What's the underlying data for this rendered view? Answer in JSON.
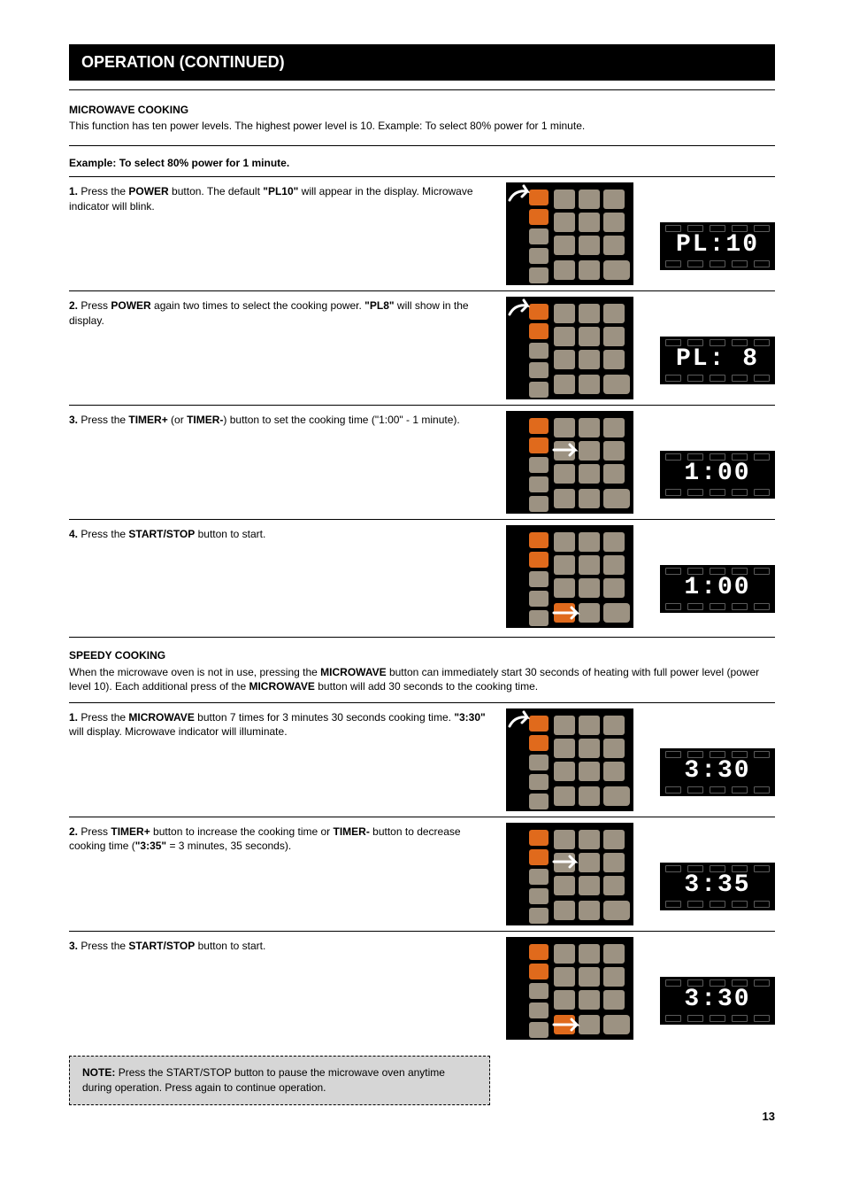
{
  "colors": {
    "orange": "#e06a1c",
    "tan": "#9c9282",
    "panel": "#000000",
    "arrow": "#ffffff",
    "lcd_text": "#ffffff",
    "lcd_bg": "#000000"
  },
  "page_number": "13",
  "title": "OPERATION (CONTINUED)",
  "intro": {
    "heading": "MICROWAVE COOKING",
    "body": "This function has ten power levels. The highest power level is 10. Example: To select 80% power for 1 minute."
  },
  "example_label": "Example: To select 80% power for 1 minute.",
  "steps1": [
    {
      "num": "1.",
      "text": "Press the POWER button. The default \"PL10\" will appear in the display. Microwave indicator will blink.",
      "bold": [
        "POWER",
        "\"PL10\""
      ],
      "arrow": "top-left",
      "highlight_row": 1,
      "display": "PL:10"
    },
    {
      "num": "2.",
      "text": "Press POWER again two times to select the cooking power. \"PL8\" will show in the display.",
      "bold": [
        "POWER",
        "\"PL8\""
      ],
      "arrow": "top-left",
      "highlight_row": 1,
      "display": "PL: 8"
    },
    {
      "num": "3.",
      "text": "Press the TIMER+ (or TIMER-) button to set the cooking time (\"1:00\" - 1 minute).",
      "bold": [
        "TIMER+",
        "TIMER-"
      ],
      "arrow": "mid-left",
      "highlight_row": 2,
      "display": " 1:00"
    },
    {
      "num": "4.",
      "text": "Press the START/STOP button to start.",
      "bold": [
        "START/STOP"
      ],
      "arrow": "bottom",
      "highlight_row": "bottom",
      "display": " 1:00"
    }
  ],
  "speed": {
    "heading": "SPEEDY COOKING",
    "body": "When the microwave oven is not in use, pressing the MICROWAVE button can immediately start 30 seconds of heating with full power level (power level 10). Each additional press of the MICROWAVE button will add 30 seconds to the cooking time.",
    "bold": [
      "MICROWAVE",
      "MICROWAVE"
    ]
  },
  "steps2": [
    {
      "num": "1.",
      "text": "Press the MICROWAVE button 7 times for 3 minutes 30 seconds cooking time. \"3:30\" will display. Microwave indicator will illuminate.",
      "bold": [
        "MICROWAVE",
        "\"3:30\""
      ],
      "arrow": "top-left",
      "highlight_row": 0,
      "display": " 3:30"
    },
    {
      "num": "2.",
      "text": "Press TIMER+ button to increase the cooking time or TIMER- button to decrease cooking time (\"3:35\" = 3 minutes, 35 seconds).",
      "bold": [
        "TIMER+",
        "TIMER-",
        "\"3:35\""
      ],
      "arrow": "mid-left",
      "highlight_row": 2,
      "display": " 3:35"
    },
    {
      "num": "3.",
      "text": "Press the START/STOP button to start.",
      "bold": [
        "START/STOP"
      ],
      "arrow": "bottom",
      "highlight_row": "bottom",
      "display": " 3:30"
    }
  ],
  "note": {
    "label": "NOTE:",
    "text": "Press the START/STOP button to pause the microwave oven anytime during operation. Press again to continue operation."
  }
}
